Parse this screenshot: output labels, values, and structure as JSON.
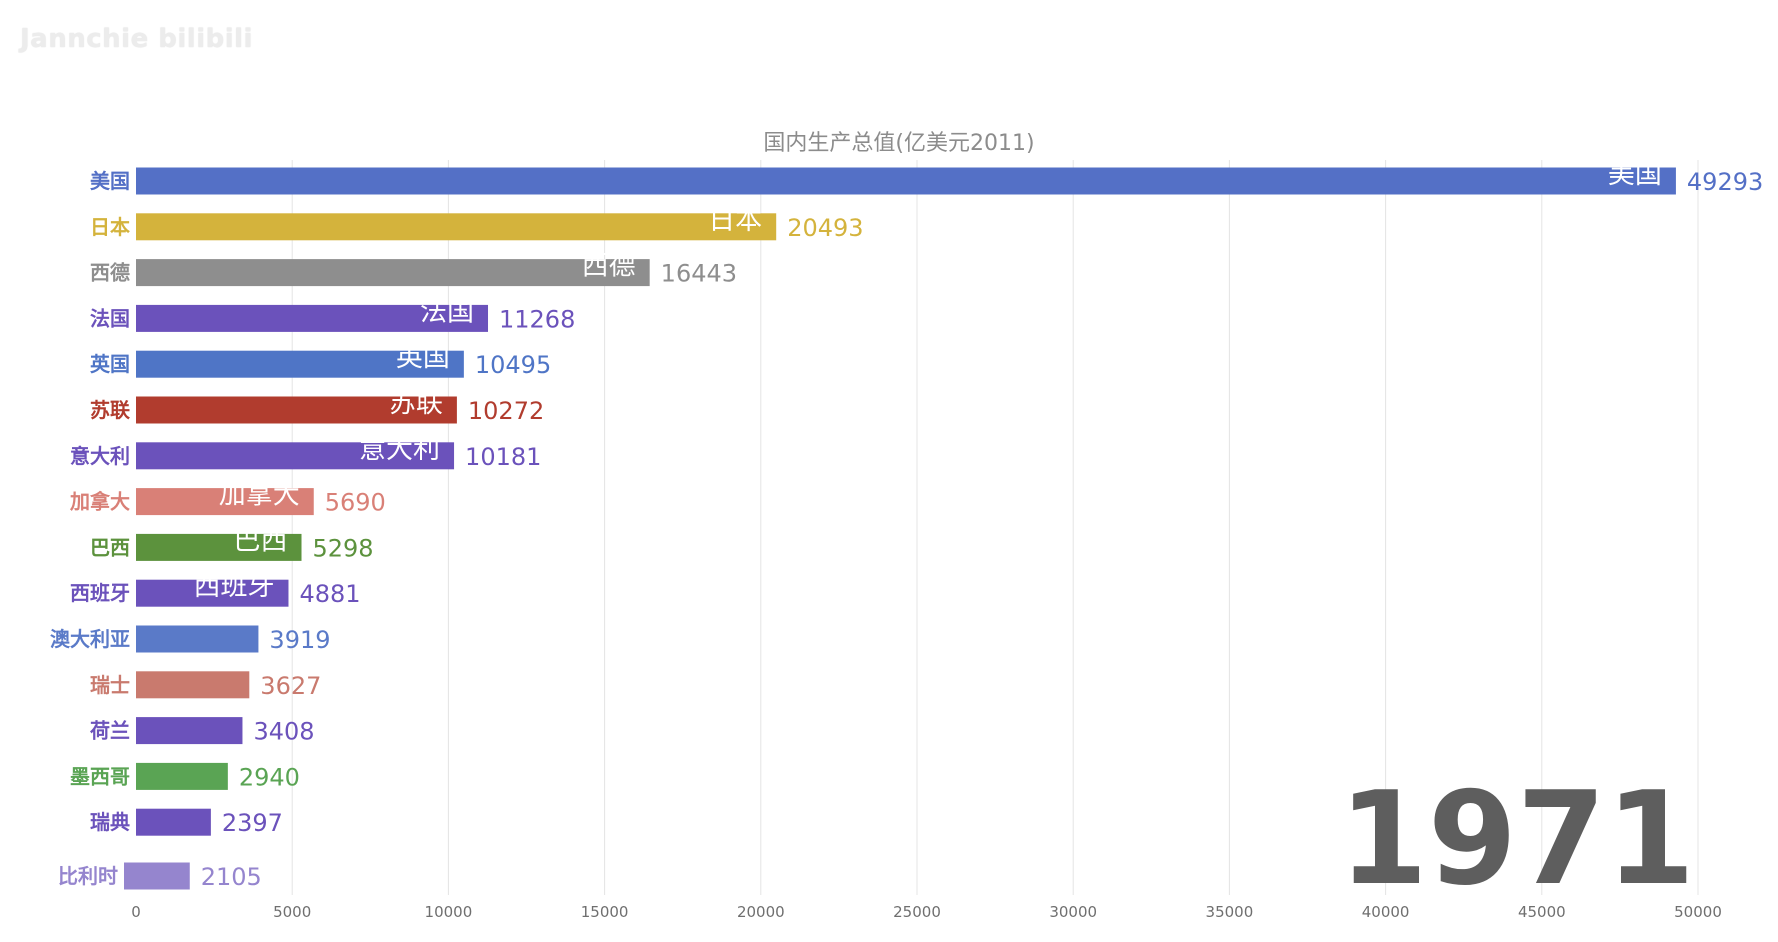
{
  "watermark": "Jannchie bilibili",
  "chart_data": {
    "type": "bar",
    "orientation": "horizontal",
    "title": "国内生产总值(亿美元2011)",
    "year": "1971",
    "xlim": [
      0,
      50000
    ],
    "xticks": [
      0,
      5000,
      10000,
      15000,
      20000,
      25000,
      30000,
      35000,
      40000,
      45000,
      50000
    ],
    "grid": true,
    "categories": [
      "美国",
      "日本",
      "西德",
      "法国",
      "英国",
      "苏联",
      "意大利",
      "加拿大",
      "巴西",
      "西班牙",
      "澳大利亚",
      "瑞士",
      "荷兰",
      "墨西哥",
      "瑞典",
      "比利时"
    ],
    "values": [
      49293,
      20493,
      16443,
      11268,
      10495,
      10272,
      10181,
      5690,
      5298,
      4881,
      3919,
      3627,
      3408,
      2940,
      2397,
      2105
    ],
    "colors": [
      "#5470c6",
      "#d4b33c",
      "#8e8e8e",
      "#6b52bb",
      "#4f75c6",
      "#b13c2e",
      "#6b52bb",
      "#d98077",
      "#5c923d",
      "#6b52bb",
      "#5a7ac8",
      "#c97a6e",
      "#6b52bb",
      "#5aa454",
      "#6b52bb",
      "#9585ce"
    ],
    "inner_labels": [
      true,
      true,
      true,
      true,
      true,
      true,
      true,
      true,
      true,
      true,
      false,
      false,
      false,
      false,
      false,
      false
    ]
  }
}
